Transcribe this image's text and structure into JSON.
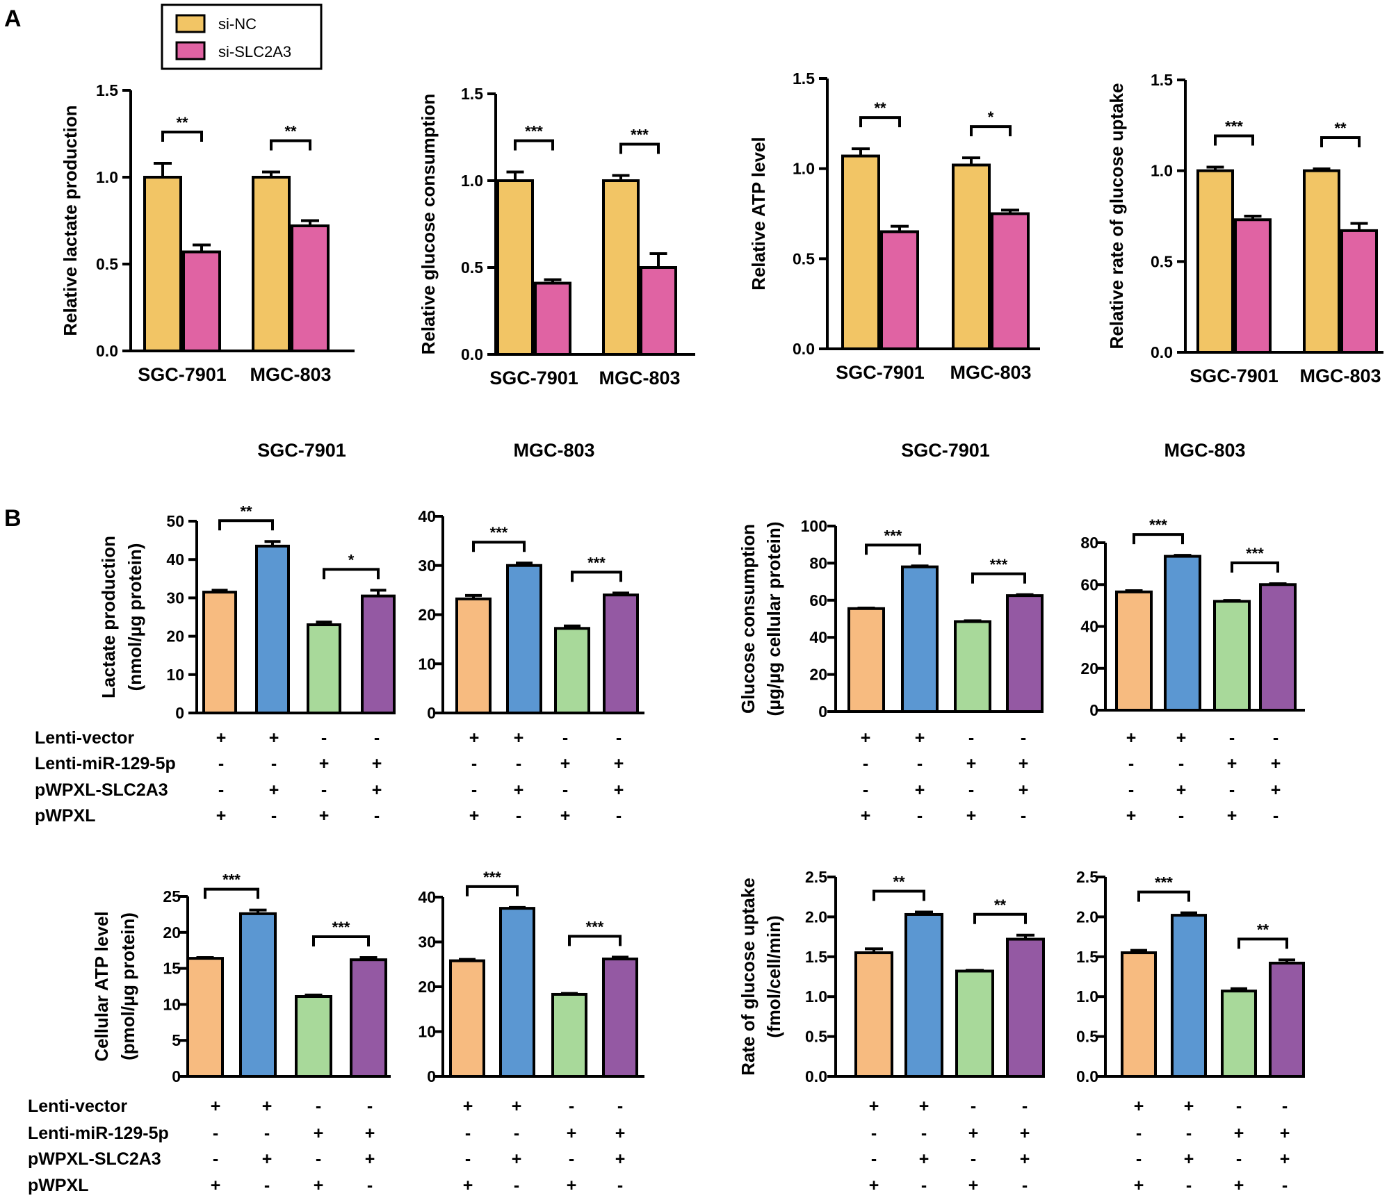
{
  "panels": {
    "A": "A",
    "B": "B"
  },
  "colors": {
    "si_nc": "#f2c565",
    "si_slc2a3": "#e063a3",
    "lenti_vector_pwpxl": "#f7bb80",
    "lenti_vector_slc2a3": "#5b97d2",
    "mir_pwpxl": "#a8d99a",
    "mir_slc2a3": "#9459a3",
    "axis": "#000000"
  },
  "legend": {
    "entries": [
      "si-NC",
      "si-SLC2A3"
    ]
  },
  "headers": [
    "SGC-7901",
    "MGC-803",
    "SGC-7901",
    "MGC-803"
  ],
  "conditions": {
    "labels": [
      "Lenti-vector",
      "Lenti-miR-129-5p",
      "pWPXL-SLC2A3",
      "pWPXL"
    ],
    "signs": [
      [
        "+",
        "+",
        "-",
        "-"
      ],
      [
        "-",
        "-",
        "+",
        "+"
      ],
      [
        "-",
        "+",
        "-",
        "+"
      ],
      [
        "+",
        "-",
        "+",
        "-"
      ]
    ]
  },
  "chart_data": [
    {
      "id": "A1",
      "type": "bar",
      "ylabel": "Relative lactate production",
      "ylim": [
        0,
        1.5
      ],
      "yticks": [
        "0.0",
        "0.5",
        "1.0",
        "1.5"
      ],
      "categories": [
        "SGC-7901",
        "MGC-803"
      ],
      "series": [
        {
          "name": "si-NC",
          "values": [
            1.0,
            1.0
          ],
          "errors": [
            0.08,
            0.03
          ]
        },
        {
          "name": "si-SLC2A3",
          "values": [
            0.57,
            0.72
          ],
          "errors": [
            0.04,
            0.03
          ]
        }
      ],
      "significance": [
        "**",
        "**"
      ]
    },
    {
      "id": "A2",
      "type": "bar",
      "ylabel": "Relative glucose consumption",
      "ylim": [
        0,
        1.5
      ],
      "yticks": [
        "0.0",
        "0.5",
        "1.0",
        "1.5"
      ],
      "categories": [
        "SGC-7901",
        "MGC-803"
      ],
      "series": [
        {
          "name": "si-NC",
          "values": [
            1.0,
            1.0
          ],
          "errors": [
            0.05,
            0.03
          ]
        },
        {
          "name": "si-SLC2A3",
          "values": [
            0.41,
            0.5
          ],
          "errors": [
            0.02,
            0.08
          ]
        }
      ],
      "significance": [
        "***",
        "***"
      ]
    },
    {
      "id": "A3",
      "type": "bar",
      "ylabel": "Relative ATP level",
      "ylim": [
        0,
        1.5
      ],
      "yticks": [
        "0.0",
        "0.5",
        "1.0",
        "1.5"
      ],
      "categories": [
        "SGC-7901",
        "MGC-803"
      ],
      "series": [
        {
          "name": "si-NC",
          "values": [
            1.07,
            1.02
          ],
          "errors": [
            0.04,
            0.04
          ]
        },
        {
          "name": "si-SLC2A3",
          "values": [
            0.65,
            0.75
          ],
          "errors": [
            0.03,
            0.02
          ]
        }
      ],
      "significance": [
        "**",
        "*"
      ]
    },
    {
      "id": "A4",
      "type": "bar",
      "ylabel": "Relative rate of glucose uptake",
      "ylim": [
        0,
        1.5
      ],
      "yticks": [
        "0.0",
        "0.5",
        "1.0",
        "1.5"
      ],
      "categories": [
        "SGC-7901",
        "MGC-803"
      ],
      "series": [
        {
          "name": "si-NC",
          "values": [
            1.0,
            1.0
          ],
          "errors": [
            0.02,
            0.01
          ]
        },
        {
          "name": "si-SLC2A3",
          "values": [
            0.73,
            0.67
          ],
          "errors": [
            0.02,
            0.04
          ]
        }
      ],
      "significance": [
        "***",
        "**"
      ]
    },
    {
      "id": "B1",
      "type": "bar",
      "ylabel": [
        "Lactate production",
        "(nmol/µg protein)"
      ],
      "ylim": [
        0,
        50
      ],
      "yticks": [
        "0",
        "10",
        "20",
        "30",
        "40",
        "50"
      ],
      "values": [
        31.5,
        43.5,
        23,
        30.5
      ],
      "errors": [
        0.5,
        1.2,
        0.7,
        1.5
      ],
      "significance": [
        "**",
        "*"
      ]
    },
    {
      "id": "B2",
      "type": "bar",
      "ylabel": "",
      "ylim": [
        0,
        40
      ],
      "yticks": [
        "0",
        "10",
        "20",
        "30",
        "40"
      ],
      "values": [
        23.2,
        30,
        17.2,
        24
      ],
      "errors": [
        0.7,
        0.5,
        0.5,
        0.4
      ],
      "significance": [
        "***",
        "***"
      ]
    },
    {
      "id": "B3",
      "type": "bar",
      "ylabel": [
        "Glucose consumption",
        "(µg/µg cellular protein)"
      ],
      "ylim": [
        0,
        100
      ],
      "yticks": [
        "0",
        "20",
        "40",
        "60",
        "80",
        "100"
      ],
      "values": [
        55.5,
        78,
        48.5,
        62.5
      ],
      "errors": [
        0.3,
        0.5,
        0.4,
        0.5
      ],
      "significance": [
        "***",
        "***"
      ]
    },
    {
      "id": "B4",
      "type": "bar",
      "ylabel": "",
      "ylim": [
        0,
        80
      ],
      "yticks": [
        "0",
        "20",
        "40",
        "60",
        "80"
      ],
      "values": [
        56.5,
        73.5,
        52,
        60
      ],
      "errors": [
        0.6,
        0.5,
        0.4,
        0.4
      ],
      "significance": [
        "***",
        "***"
      ]
    },
    {
      "id": "B5",
      "type": "bar",
      "ylabel": [
        "Cellular ATP level",
        "(pmol/µg protein)"
      ],
      "ylim": [
        0,
        25
      ],
      "yticks": [
        "0",
        "5",
        "10",
        "15",
        "20",
        "25"
      ],
      "values": [
        16.4,
        22.6,
        11.1,
        16.2
      ],
      "errors": [
        0.1,
        0.5,
        0.2,
        0.3
      ],
      "significance": [
        "***",
        "***"
      ]
    },
    {
      "id": "B6",
      "type": "bar",
      "ylabel": "",
      "ylim": [
        0,
        40
      ],
      "yticks": [
        "0",
        "10",
        "20",
        "30",
        "40"
      ],
      "values": [
        25.8,
        37.5,
        18.3,
        26.2
      ],
      "errors": [
        0.3,
        0.2,
        0.2,
        0.4
      ],
      "significance": [
        "***",
        "***"
      ]
    },
    {
      "id": "B7",
      "type": "bar",
      "ylabel": [
        "Rate of glucose uptake",
        "(fmol/cell/min)"
      ],
      "ylim": [
        0,
        2.5
      ],
      "yticks": [
        "0.0",
        "0.5",
        "1.0",
        "1.5",
        "2.0",
        "2.5"
      ],
      "values": [
        1.55,
        2.03,
        1.32,
        1.72
      ],
      "errors": [
        0.05,
        0.03,
        0.01,
        0.05
      ],
      "significance": [
        "**",
        "**"
      ]
    },
    {
      "id": "B8",
      "type": "bar",
      "ylabel": "",
      "ylim": [
        0,
        2.5
      ],
      "yticks": [
        "0.0",
        "0.5",
        "1.0",
        "1.5",
        "2.0",
        "2.5"
      ],
      "values": [
        1.55,
        2.02,
        1.07,
        1.42
      ],
      "errors": [
        0.03,
        0.03,
        0.03,
        0.04
      ],
      "significance": [
        "***",
        "**"
      ]
    }
  ]
}
